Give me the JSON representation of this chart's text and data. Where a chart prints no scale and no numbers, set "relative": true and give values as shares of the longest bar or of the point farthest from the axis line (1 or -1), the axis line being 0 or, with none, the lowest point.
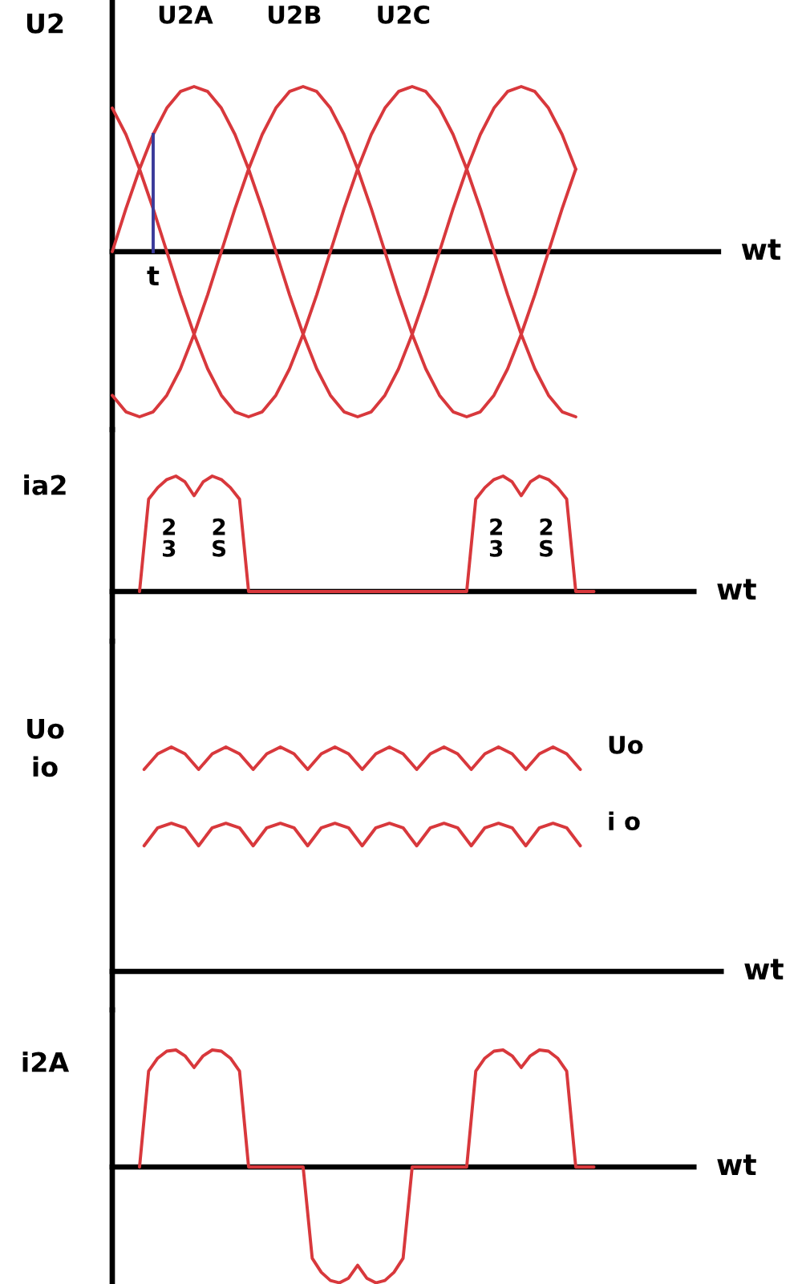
{
  "chart_data": [
    {
      "type": "line",
      "relative": true,
      "ylabel": "U2",
      "xlabel": "wt",
      "categories": [
        null,
        null,
        null,
        null,
        null,
        null,
        null,
        null,
        null,
        null,
        null,
        null,
        null,
        null,
        null,
        null,
        null,
        null,
        null,
        null,
        null,
        null,
        null,
        null,
        null,
        null,
        null,
        null,
        null,
        null,
        null,
        null,
        null,
        null,
        null
      ],
      "annotations": [
        "t"
      ],
      "series": [
        {
          "name": "U2A",
          "color": "#d8383c",
          "values": [
            0,
            0.26,
            0.5,
            0.71,
            0.87,
            0.97,
            1,
            0.97,
            0.87,
            0.71,
            0.5,
            0.26,
            0,
            -0.26,
            -0.5,
            -0.71,
            -0.87,
            -0.97,
            -1,
            -0.97,
            -0.87,
            -0.71,
            -0.5,
            -0.26,
            0,
            0.26,
            0.5,
            0.71,
            0.87,
            0.97,
            1,
            0.97,
            0.87,
            0.71,
            0.5
          ]
        },
        {
          "name": "U2B",
          "color": "#d8383c",
          "values": [
            -0.87,
            -0.97,
            -1,
            -0.97,
            -0.87,
            -0.71,
            -0.5,
            -0.26,
            0,
            0.26,
            0.5,
            0.71,
            0.87,
            0.97,
            1,
            0.97,
            0.87,
            0.71,
            0.5,
            0.26,
            0,
            -0.26,
            -0.5,
            -0.71,
            -0.87,
            -0.97,
            -1,
            -0.97,
            -0.87,
            -0.71,
            -0.5,
            -0.26,
            0,
            0.26,
            0.5
          ]
        },
        {
          "name": "U2C",
          "color": "#d8383c",
          "values": [
            0.87,
            0.71,
            0.5,
            0.26,
            0,
            -0.26,
            -0.5,
            -0.71,
            -0.87,
            -0.97,
            -1,
            -0.97,
            -0.87,
            -0.71,
            -0.5,
            -0.26,
            0,
            0.26,
            0.5,
            0.71,
            0.87,
            0.97,
            1,
            0.97,
            0.87,
            0.71,
            0.5,
            0.26,
            0,
            -0.26,
            -0.5,
            -0.71,
            -0.87,
            -0.97,
            -1
          ]
        }
      ]
    },
    {
      "type": "line",
      "relative": true,
      "ylabel": "ia2",
      "xlabel": "wt",
      "annotations": [
        "2\n3",
        "2\nS",
        "2\n3",
        "2\nS"
      ],
      "categories": [
        null,
        null,
        null,
        null,
        null,
        null,
        null,
        null,
        null,
        null,
        null,
        null,
        null,
        null,
        null,
        null,
        null,
        null,
        null,
        null,
        null,
        null,
        null,
        null,
        null,
        null,
        null,
        null,
        null,
        null,
        null,
        null,
        null,
        null,
        null,
        null,
        null,
        null,
        null,
        null,
        null,
        null,
        null,
        null,
        null,
        null,
        null,
        null,
        null,
        null,
        null
      ],
      "series": [
        {
          "color": "#d8383c",
          "values": [
            0,
            0.8,
            0.9,
            0.97,
            1,
            0.95,
            0.83,
            0.95,
            1,
            0.97,
            0.9,
            0.8,
            0,
            0,
            0,
            0,
            0,
            0,
            0,
            0,
            0,
            0,
            0,
            0,
            0,
            0,
            0,
            0,
            0,
            0,
            0,
            0,
            0,
            0,
            0,
            0,
            0,
            0.8,
            0.9,
            0.97,
            1,
            0.95,
            0.83,
            0.95,
            1,
            0.97,
            0.9,
            0.8,
            0,
            0,
            0
          ]
        }
      ]
    },
    {
      "type": "line",
      "relative": true,
      "ylabel": "Uo\nio",
      "xlabel": "wt",
      "categories": [
        null,
        null,
        null,
        null,
        null,
        null,
        null,
        null,
        null,
        null,
        null,
        null,
        null,
        null,
        null,
        null,
        null,
        null,
        null,
        null,
        null,
        null,
        null,
        null,
        null,
        null,
        null,
        null,
        null,
        null,
        null,
        null,
        null
      ],
      "series": [
        {
          "name": "Uo",
          "color": "#d8383c",
          "values": [
            0.9,
            0.97,
            1,
            0.97,
            0.9,
            0.97,
            1,
            0.97,
            0.9,
            0.97,
            1,
            0.97,
            0.9,
            0.97,
            1,
            0.97,
            0.9,
            0.97,
            1,
            0.97,
            0.9,
            0.97,
            1,
            0.97,
            0.9,
            0.97,
            1,
            0.97,
            0.9,
            0.97,
            1,
            0.97,
            0.9
          ]
        },
        {
          "name": "i o",
          "color": "#d8383c",
          "values": [
            0.56,
            0.64,
            0.66,
            0.64,
            0.56,
            0.64,
            0.66,
            0.64,
            0.56,
            0.64,
            0.66,
            0.64,
            0.56,
            0.64,
            0.66,
            0.64,
            0.56,
            0.64,
            0.66,
            0.64,
            0.56,
            0.64,
            0.66,
            0.64,
            0.56,
            0.64,
            0.66,
            0.64,
            0.56,
            0.64,
            0.66,
            0.64,
            0.56
          ]
        }
      ]
    },
    {
      "type": "line",
      "relative": true,
      "ylabel": "i2A",
      "xlabel": "wt",
      "categories": [
        null,
        null,
        null,
        null,
        null,
        null,
        null,
        null,
        null,
        null,
        null,
        null,
        null,
        null,
        null,
        null,
        null,
        null,
        null,
        null,
        null,
        null,
        null,
        null,
        null,
        null,
        null,
        null,
        null,
        null,
        null,
        null,
        null,
        null,
        null,
        null,
        null,
        null,
        null,
        null,
        null,
        null,
        null,
        null,
        null,
        null,
        null,
        null,
        null,
        null,
        null
      ],
      "series": [
        {
          "color": "#d8383c",
          "values": [
            0,
            0.82,
            0.93,
            0.99,
            1,
            0.95,
            0.85,
            0.95,
            1,
            0.99,
            0.93,
            0.82,
            0,
            0,
            0,
            0,
            0,
            0,
            0,
            -0.78,
            -0.9,
            -0.97,
            -0.99,
            -0.95,
            -0.84,
            -0.95,
            -0.99,
            -0.97,
            -0.9,
            -0.78,
            0,
            0,
            0,
            0,
            0,
            0,
            0,
            0.82,
            0.93,
            0.99,
            1,
            0.95,
            0.85,
            0.95,
            1,
            0.99,
            0.93,
            0.82,
            0,
            0,
            0
          ]
        }
      ]
    }
  ]
}
